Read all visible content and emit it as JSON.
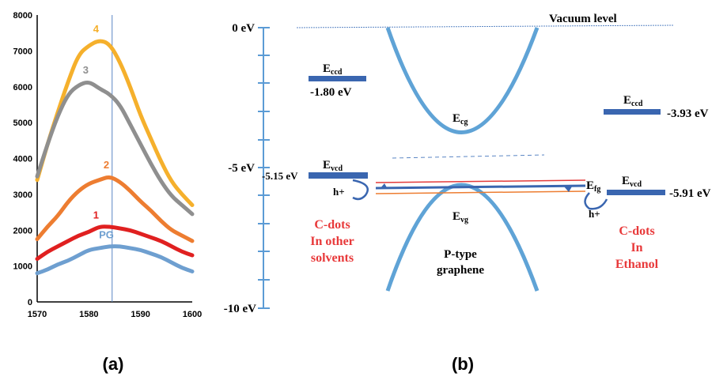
{
  "chart_data": {
    "type": "line",
    "x": [
      1570,
      1572,
      1574,
      1576,
      1578,
      1580,
      1582,
      1584,
      1586,
      1588,
      1590,
      1592,
      1594,
      1596,
      1598,
      1600
    ],
    "xlim": [
      1570,
      1600
    ],
    "ylim": [
      0,
      8000
    ],
    "x_ticks": [
      "1570",
      "1580",
      "1590",
      "1600"
    ],
    "y_ticks": [
      "0",
      "1000",
      "2000",
      "3000",
      "4000",
      "5000",
      "6000",
      "7000",
      "8000"
    ],
    "marker_x": 1584.5,
    "series": [
      {
        "name": "4",
        "color": "#f5b02c",
        "values": [
          3400,
          4400,
          5300,
          6150,
          6900,
          7150,
          7300,
          7200,
          6700,
          6000,
          5200,
          4550,
          3900,
          3350,
          3000,
          2700
        ]
      },
      {
        "name": "3",
        "color": "#8f8f8f",
        "values": [
          3500,
          4400,
          5200,
          5800,
          6050,
          6150,
          5950,
          5800,
          5500,
          4950,
          4400,
          3850,
          3350,
          2950,
          2700,
          2450
        ]
      },
      {
        "name": "2",
        "color": "#ed7d31",
        "values": [
          1750,
          2100,
          2400,
          2800,
          3100,
          3300,
          3400,
          3500,
          3350,
          3100,
          2800,
          2550,
          2250,
          2000,
          1850,
          1700
        ]
      },
      {
        "name": "1",
        "color": "#e02020",
        "values": [
          1200,
          1400,
          1550,
          1700,
          1850,
          1950,
          2100,
          2100,
          2050,
          2000,
          1900,
          1800,
          1700,
          1550,
          1400,
          1300
        ]
      },
      {
        "name": "PG",
        "color": "#6e9fd0",
        "values": [
          800,
          900,
          1050,
          1150,
          1300,
          1450,
          1500,
          1550,
          1550,
          1500,
          1450,
          1350,
          1250,
          1100,
          950,
          850
        ]
      }
    ]
  },
  "captions": {
    "a": "(a)",
    "b": "(b)"
  },
  "diagram": {
    "axis_ticks": [
      "0 eV",
      "-5 eV",
      "-10 eV"
    ],
    "vacuum_label": "Vacuum level",
    "left": {
      "eccd": "E",
      "eccd_sub": "ccd",
      "eccd_value": "-1.80 eV",
      "evcd": "E",
      "evcd_sub": "vcd",
      "evcd_value": "-5.15 eV",
      "hole": "h+",
      "title_line1": "C-dots",
      "title_line2": "In other",
      "title_line3": "solvents"
    },
    "center": {
      "ecg": "E",
      "ecg_sub": "cg",
      "evg": "E",
      "evg_sub": "vg",
      "efg": "E",
      "efg_sub": "fg",
      "label_line1": "P-type",
      "label_line2": "graphene"
    },
    "right": {
      "eccd": "E",
      "eccd_sub": "ccd",
      "eccd_value": "-3.93 eV",
      "evcd": "E",
      "evcd_sub": "vcd",
      "evcd_value": "-5.91 eV",
      "hole": "h+",
      "title_line1": "C-dots",
      "title_line2": "In",
      "title_line3": "Ethanol"
    }
  }
}
